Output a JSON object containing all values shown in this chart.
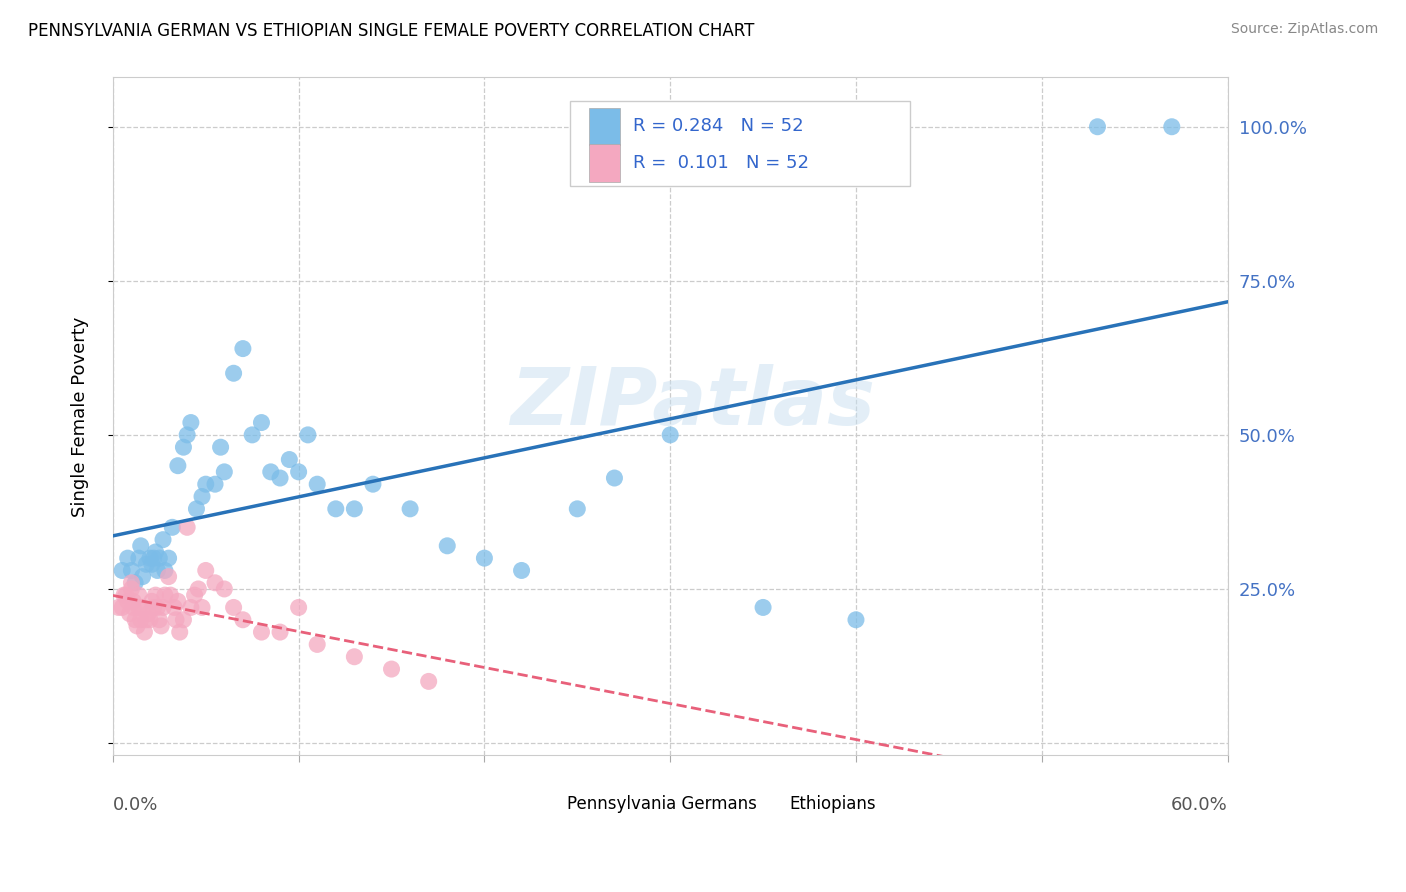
{
  "title": "PENNSYLVANIA GERMAN VS ETHIOPIAN SINGLE FEMALE POVERTY CORRELATION CHART",
  "source": "Source: ZipAtlas.com",
  "ylabel": "Single Female Poverty",
  "xmin": 0.0,
  "xmax": 0.6,
  "ymin": -0.02,
  "ymax": 1.08,
  "r_pa": 0.284,
  "n_pa": 52,
  "r_eth": 0.101,
  "n_eth": 52,
  "color_pa": "#7bbce8",
  "color_eth": "#f4a8c0",
  "trendline_pa_color": "#2872b8",
  "trendline_eth_color": "#e8607a",
  "watermark": "ZIPatlas",
  "legend_label_pa": "Pennsylvania Germans",
  "legend_label_eth": "Ethiopians",
  "ytick_vals": [
    0.0,
    0.25,
    0.5,
    0.75,
    1.0
  ],
  "ytick_labels": [
    "",
    "25.0%",
    "50.0%",
    "75.0%",
    "100.0%"
  ],
  "pa_x": [
    0.005,
    0.008,
    0.01,
    0.012,
    0.014,
    0.015,
    0.016,
    0.018,
    0.02,
    0.021,
    0.022,
    0.023,
    0.024,
    0.025,
    0.027,
    0.028,
    0.03,
    0.032,
    0.035,
    0.038,
    0.04,
    0.042,
    0.045,
    0.048,
    0.05,
    0.055,
    0.058,
    0.06,
    0.065,
    0.07,
    0.075,
    0.08,
    0.085,
    0.09,
    0.095,
    0.1,
    0.105,
    0.11,
    0.12,
    0.13,
    0.14,
    0.16,
    0.18,
    0.2,
    0.22,
    0.25,
    0.27,
    0.3,
    0.35,
    0.4,
    0.53,
    0.57
  ],
  "pa_y": [
    0.28,
    0.3,
    0.28,
    0.26,
    0.3,
    0.32,
    0.27,
    0.29,
    0.3,
    0.29,
    0.3,
    0.31,
    0.28,
    0.3,
    0.33,
    0.28,
    0.3,
    0.35,
    0.45,
    0.48,
    0.5,
    0.52,
    0.38,
    0.4,
    0.42,
    0.42,
    0.48,
    0.44,
    0.6,
    0.64,
    0.5,
    0.52,
    0.44,
    0.43,
    0.46,
    0.44,
    0.5,
    0.42,
    0.38,
    0.38,
    0.42,
    0.38,
    0.32,
    0.3,
    0.28,
    0.38,
    0.43,
    0.5,
    0.22,
    0.2,
    1.0,
    1.0
  ],
  "eth_x": [
    0.003,
    0.005,
    0.006,
    0.007,
    0.008,
    0.009,
    0.01,
    0.01,
    0.011,
    0.011,
    0.012,
    0.013,
    0.014,
    0.014,
    0.015,
    0.016,
    0.017,
    0.018,
    0.019,
    0.02,
    0.021,
    0.022,
    0.023,
    0.024,
    0.025,
    0.026,
    0.027,
    0.028,
    0.03,
    0.031,
    0.033,
    0.034,
    0.035,
    0.036,
    0.038,
    0.04,
    0.042,
    0.044,
    0.046,
    0.048,
    0.05,
    0.055,
    0.06,
    0.065,
    0.07,
    0.08,
    0.09,
    0.1,
    0.11,
    0.13,
    0.15,
    0.17
  ],
  "eth_y": [
    0.22,
    0.22,
    0.24,
    0.24,
    0.23,
    0.21,
    0.25,
    0.26,
    0.22,
    0.23,
    0.2,
    0.19,
    0.22,
    0.24,
    0.2,
    0.22,
    0.18,
    0.2,
    0.21,
    0.2,
    0.23,
    0.22,
    0.24,
    0.22,
    0.2,
    0.19,
    0.22,
    0.24,
    0.27,
    0.24,
    0.22,
    0.2,
    0.23,
    0.18,
    0.2,
    0.35,
    0.22,
    0.24,
    0.25,
    0.22,
    0.28,
    0.26,
    0.25,
    0.22,
    0.2,
    0.18,
    0.18,
    0.22,
    0.16,
    0.14,
    0.12,
    0.1
  ]
}
